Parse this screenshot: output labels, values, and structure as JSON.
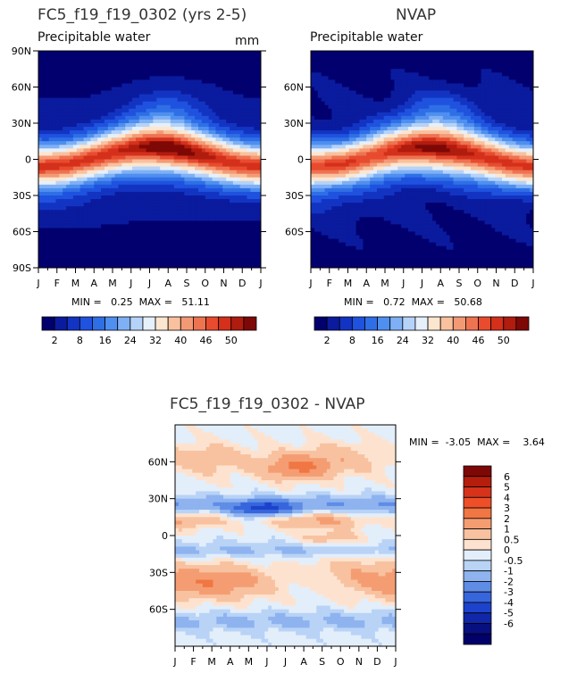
{
  "chart_data": [
    {
      "type": "heatmap",
      "title": "FC5_f19_f19_0302 (yrs 2-5)",
      "subtitle": "Precipitable water",
      "units": "mm",
      "xlabels": [
        "J",
        "F",
        "M",
        "A",
        "M",
        "J",
        "J",
        "A",
        "S",
        "O",
        "N",
        "D",
        "J"
      ],
      "ylabels": [
        "90N",
        "60N",
        "30N",
        "0",
        "30S",
        "60S",
        "90S"
      ],
      "ylim": [
        -90,
        90
      ],
      "stats": "MIN =   0.25  MAX =   51.11",
      "colorbar_labels": [
        "2",
        "8",
        "16",
        "24",
        "32",
        "40",
        "46",
        "50"
      ]
    },
    {
      "type": "heatmap",
      "title": "NVAP",
      "subtitle": "Precipitable water",
      "xlabels": [
        "J",
        "F",
        "M",
        "A",
        "M",
        "J",
        "J",
        "A",
        "S",
        "O",
        "N",
        "D",
        "J"
      ],
      "ylabels": [
        "60N",
        "30N",
        "0",
        "30S",
        "60S"
      ],
      "ylim": [
        -90,
        90
      ],
      "stats": "MIN =   0.72  MAX =   50.68",
      "colorbar_labels": [
        "2",
        "8",
        "16",
        "24",
        "32",
        "40",
        "46",
        "50"
      ]
    },
    {
      "type": "heatmap",
      "title": "FC5_f19_f19_0302 - NVAP",
      "xlabels": [
        "J",
        "F",
        "M",
        "A",
        "M",
        "J",
        "J",
        "A",
        "S",
        "O",
        "N",
        "D",
        "J"
      ],
      "ylabels": [
        "60N",
        "30N",
        "0",
        "30S",
        "60S"
      ],
      "ylim": [
        -90,
        90
      ],
      "stats": "MIN =  -3.05  MAX =    3.64",
      "colorbar_labels": [
        "6",
        "5",
        "4",
        "3",
        "2",
        "1",
        "0.5",
        "0",
        "-0.5",
        "-1",
        "-2",
        "-3",
        "-4",
        "-5",
        "-6"
      ]
    }
  ],
  "colors": {
    "pw_palette": [
      "#02006e",
      "#0b1b9e",
      "#1334c2",
      "#1f52de",
      "#2f6fe6",
      "#4f8ff0",
      "#7fb0f5",
      "#b5d3f9",
      "#e6f0fb",
      "#fde6cf",
      "#f9c19e",
      "#f39a75",
      "#ee7351",
      "#e84b2e",
      "#d4301b",
      "#b01c0e",
      "#7e0806"
    ],
    "diff_palette": [
      "#7e0806",
      "#b51e0d",
      "#d6331a",
      "#ee4f28",
      "#f07643",
      "#f59d72",
      "#f8c2a0",
      "#fde3cf",
      "#e3eefb",
      "#b8d3f6",
      "#8eb3ef",
      "#5f8de6",
      "#3766dc",
      "#1d43cc",
      "#0f27a8",
      "#080f7e",
      "#02006a"
    ]
  }
}
